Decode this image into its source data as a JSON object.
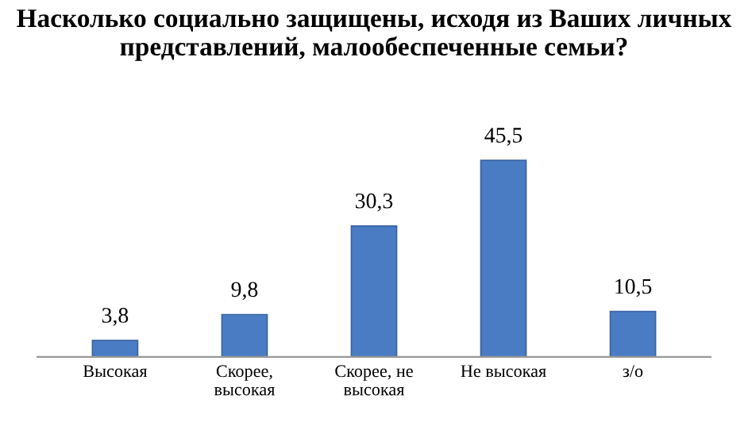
{
  "chart_data": {
    "type": "bar",
    "title": "Насколько социально защищены, исходя из Ваших личных представлений, малообеспеченные семьи?",
    "categories": [
      "Высокая",
      "Скорее,\nвысокая",
      "Скорее, не\nвысокая",
      "Не высокая",
      "з/о"
    ],
    "values": [
      3.8,
      9.8,
      30.3,
      45.5,
      10.5
    ],
    "value_labels": [
      "3,8",
      "9,8",
      "30,3",
      "45,5",
      "10,5"
    ],
    "color": "#4a7cc4",
    "grid": false,
    "legend": false
  }
}
